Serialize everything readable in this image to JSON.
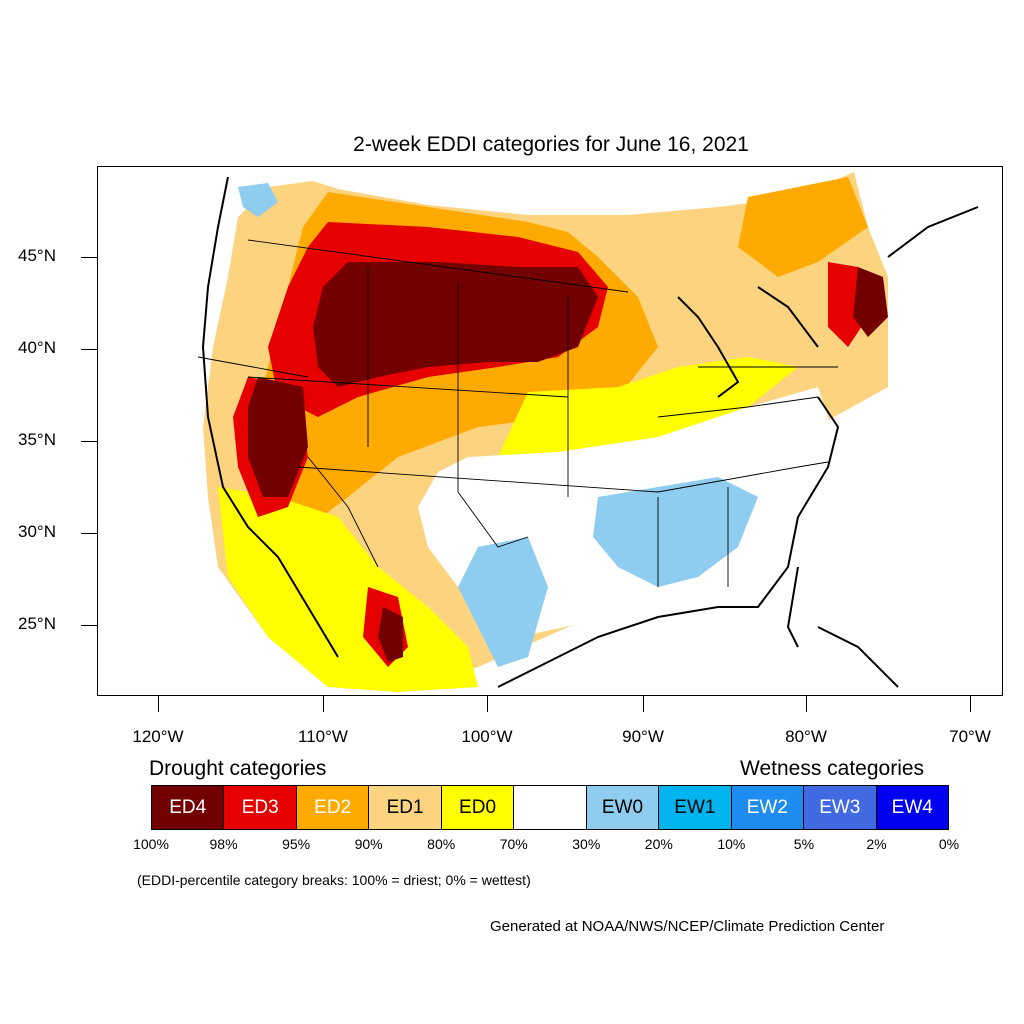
{
  "title": "2-week EDDI categories for June 16, 2021",
  "lat_labels": [
    "45°N",
    "40°N",
    "35°N",
    "30°N",
    "25°N"
  ],
  "lon_labels": [
    "120°W",
    "110°W",
    "100°W",
    "90°W",
    "80°W",
    "70°W"
  ],
  "legend": {
    "drought_heading": "Drought categories",
    "wetness_heading": "Wetness categories",
    "categories": [
      {
        "label": "ED4",
        "color": "#730000",
        "text_color": "#ffffff"
      },
      {
        "label": "ED3",
        "color": "#e60000",
        "text_color": "#ffffff"
      },
      {
        "label": "ED2",
        "color": "#ffaa00",
        "text_color": "#ffffff"
      },
      {
        "label": "ED1",
        "color": "#fcd37f",
        "text_color": "#000000"
      },
      {
        "label": "ED0",
        "color": "#ffff00",
        "text_color": "#000000"
      },
      {
        "label": "",
        "color": "#ffffff",
        "text_color": "#000000"
      },
      {
        "label": "EW0",
        "color": "#8ecdf0",
        "text_color": "#000000"
      },
      {
        "label": "EW1",
        "color": "#00b4f0",
        "text_color": "#000000"
      },
      {
        "label": "EW2",
        "color": "#1e8cf0",
        "text_color": "#ffffff"
      },
      {
        "label": "EW3",
        "color": "#4169e1",
        "text_color": "#ffffff"
      },
      {
        "label": "EW4",
        "color": "#0000f0",
        "text_color": "#ffffff"
      }
    ],
    "percentiles": [
      "100%",
      "98%",
      "95%",
      "90%",
      "80%",
      "70%",
      "30%",
      "20%",
      "10%",
      "5%",
      "2%",
      "0%"
    ]
  },
  "note": "(EDDI-percentile category breaks: 100% = driest; 0% = wettest)",
  "credit": "Generated at NOAA/NWS/NCEP/Climate Prediction Center"
}
